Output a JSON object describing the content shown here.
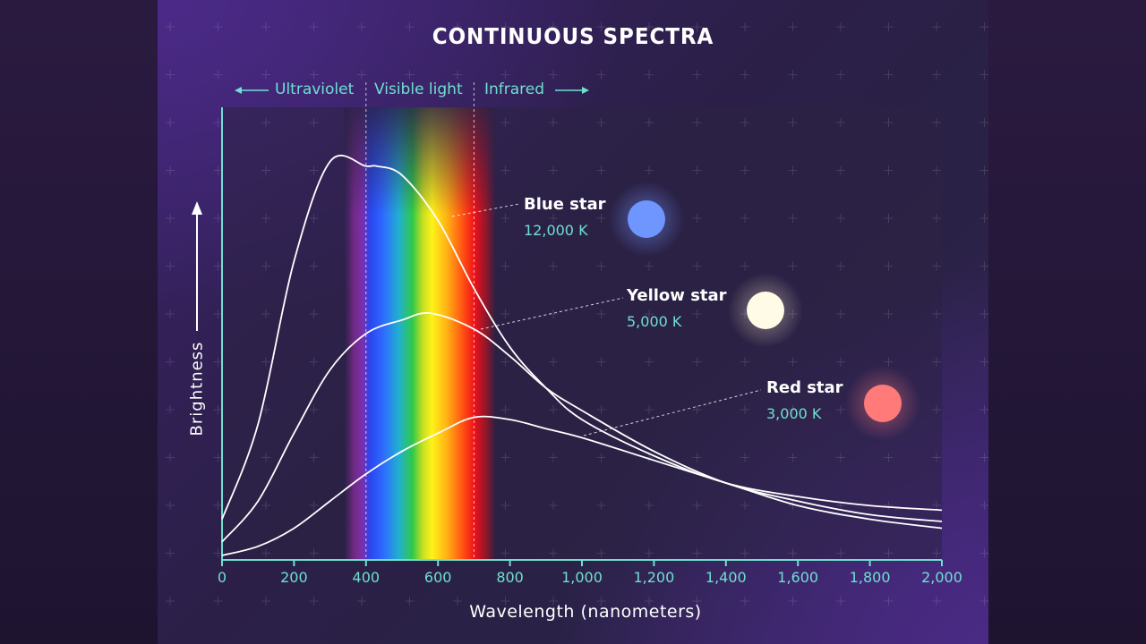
{
  "title": "CONTINUOUS SPECTRA",
  "bands": {
    "uv_label": "Ultraviolet",
    "visible_label": "Visible light",
    "ir_label": "Infrared"
  },
  "colors": {
    "accent": "#6fe0d0",
    "curve": "#ffffff",
    "blue_star": "#6f95ff",
    "yellow_star": "#fffbe6",
    "red_star": "#ff7a78"
  },
  "chart_data": {
    "type": "line",
    "title": "CONTINUOUS SPECTRA",
    "xlabel": "Wavelength (nanometers)",
    "ylabel": "Brightness",
    "xlim": [
      0,
      2000
    ],
    "ylim": [
      0,
      1
    ],
    "x_ticks": [
      "0",
      "200",
      "400",
      "600",
      "800",
      "1,000",
      "1,200",
      "1,400",
      "1,600",
      "1,800",
      "2,000"
    ],
    "x_tick_values": [
      0,
      200,
      400,
      600,
      800,
      1000,
      1200,
      1400,
      1600,
      1800,
      2000
    ],
    "visible_range": [
      400,
      700
    ],
    "series": [
      {
        "name": "Blue star",
        "temperature": "12,000 K",
        "x": [
          0,
          100,
          200,
          300,
          400,
          430,
          500,
          600,
          700,
          800,
          900,
          1000,
          1200,
          1400,
          1600,
          1800,
          2000
        ],
        "values": [
          0.09,
          0.3,
          0.66,
          0.88,
          0.87,
          0.87,
          0.85,
          0.75,
          0.6,
          0.47,
          0.38,
          0.31,
          0.23,
          0.17,
          0.14,
          0.12,
          0.11
        ]
      },
      {
        "name": "Yellow star",
        "temperature": "5,000 K",
        "x": [
          0,
          100,
          200,
          300,
          400,
          500,
          580,
          700,
          800,
          900,
          1000,
          1200,
          1400,
          1600,
          1800,
          2000
        ],
        "values": [
          0.04,
          0.13,
          0.28,
          0.42,
          0.5,
          0.53,
          0.545,
          0.51,
          0.45,
          0.38,
          0.33,
          0.24,
          0.17,
          0.13,
          0.1,
          0.085
        ]
      },
      {
        "name": "Red star",
        "temperature": "3,000 K",
        "x": [
          0,
          100,
          200,
          300,
          400,
          500,
          600,
          700,
          800,
          900,
          1000,
          1200,
          1400,
          1600,
          1800,
          2000
        ],
        "values": [
          0.01,
          0.03,
          0.07,
          0.13,
          0.19,
          0.24,
          0.28,
          0.315,
          0.31,
          0.29,
          0.27,
          0.22,
          0.17,
          0.12,
          0.09,
          0.07
        ]
      }
    ]
  }
}
